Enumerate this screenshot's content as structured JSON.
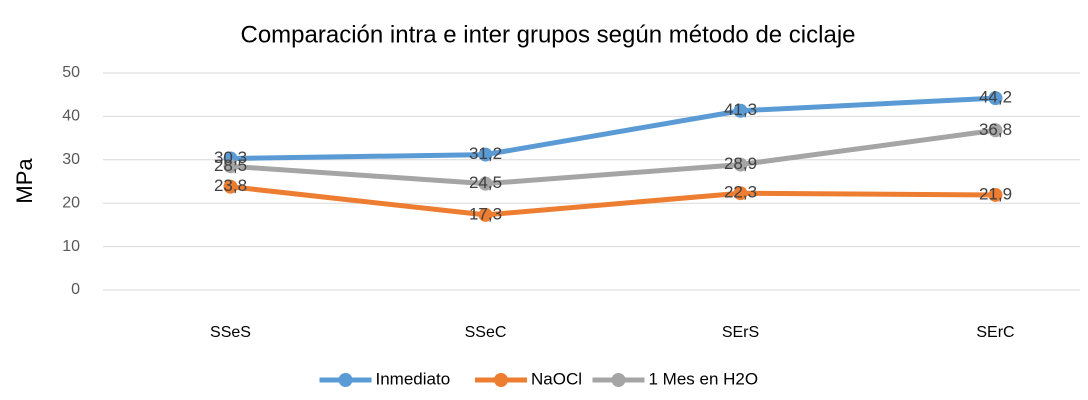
{
  "chart_data": {
    "type": "line",
    "title": "Comparación intra e inter grupos según método de ciclaje",
    "y_label": "MPa",
    "categories": [
      "SSeS",
      "SSeC",
      "SErS",
      "SErC"
    ],
    "series": [
      {
        "name": "Inmediato",
        "color": "#5b9bd5",
        "values": [
          30.3,
          31.2,
          41.3,
          44.2
        ],
        "value_labels": [
          "30,3",
          "31,2",
          "41,3",
          "44,2"
        ]
      },
      {
        "name": "NaOCl",
        "color": "#ed7d31",
        "values": [
          23.8,
          17.3,
          22.3,
          21.9
        ],
        "value_labels": [
          "23,8",
          "17,3",
          "22,3",
          "21,9"
        ]
      },
      {
        "name": "1 Mes en H2O",
        "color": "#a5a5a5",
        "values": [
          28.5,
          24.5,
          28.9,
          36.8
        ],
        "value_labels": [
          "28,5",
          "24,5",
          "28,9",
          "36,8"
        ]
      }
    ],
    "ylim": [
      0,
      50
    ],
    "yticks": [
      0,
      10,
      20,
      30,
      40,
      50
    ],
    "grid": true,
    "legend": "bottom"
  }
}
